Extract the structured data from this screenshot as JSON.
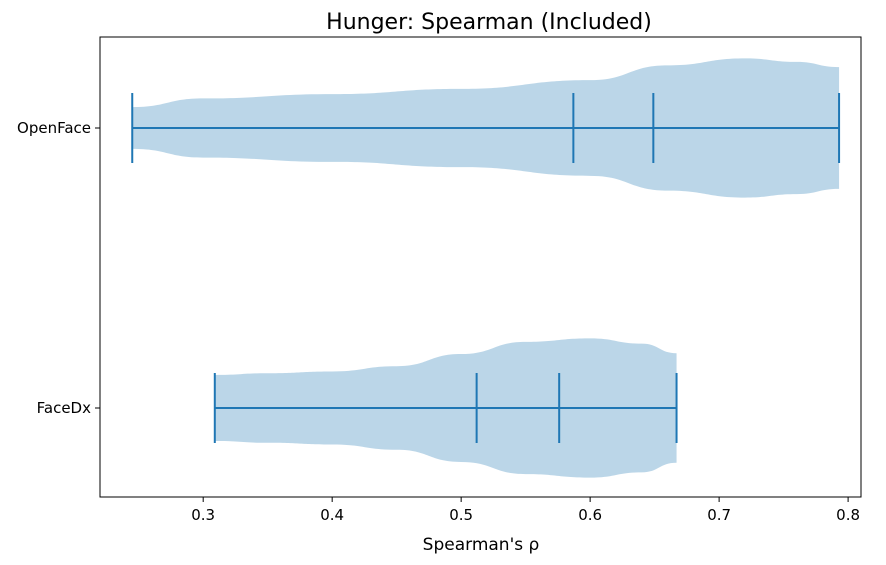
{
  "chart_data": {
    "type": "violin",
    "orientation": "horizontal",
    "title": "Hunger: Spearman (Included)",
    "xlabel": "Spearman's ρ",
    "ylabel": "",
    "xlim": [
      0.22,
      0.81
    ],
    "x_ticks": [
      0.3,
      0.4,
      0.5,
      0.6,
      0.7,
      0.8
    ],
    "x_tick_labels": [
      "0.3",
      "0.4",
      "0.5",
      "0.6",
      "0.7",
      "0.8"
    ],
    "categories": [
      "OpenFace",
      "FaceDx"
    ],
    "grid": false,
    "colors": {
      "body": "#1f77b4",
      "body_opacity": 0.3,
      "lines": "#1f77b4"
    },
    "series": [
      {
        "category": "OpenFace",
        "min": 0.245,
        "max": 0.793,
        "mean": 0.587,
        "median": 0.649,
        "density": [
          {
            "x": 0.245,
            "w": 0.24
          },
          {
            "x": 0.3,
            "w": 0.34
          },
          {
            "x": 0.4,
            "w": 0.39
          },
          {
            "x": 0.5,
            "w": 0.45
          },
          {
            "x": 0.6,
            "w": 0.55
          },
          {
            "x": 0.66,
            "w": 0.72
          },
          {
            "x": 0.72,
            "w": 0.8
          },
          {
            "x": 0.76,
            "w": 0.76
          },
          {
            "x": 0.793,
            "w": 0.7
          }
        ]
      },
      {
        "category": "FaceDx",
        "min": 0.309,
        "max": 0.667,
        "mean": 0.512,
        "median": 0.576,
        "density": [
          {
            "x": 0.309,
            "w": 0.38
          },
          {
            "x": 0.35,
            "w": 0.4
          },
          {
            "x": 0.4,
            "w": 0.42
          },
          {
            "x": 0.45,
            "w": 0.48
          },
          {
            "x": 0.5,
            "w": 0.62
          },
          {
            "x": 0.55,
            "w": 0.76
          },
          {
            "x": 0.6,
            "w": 0.8
          },
          {
            "x": 0.64,
            "w": 0.74
          },
          {
            "x": 0.667,
            "w": 0.63
          }
        ]
      }
    ]
  }
}
